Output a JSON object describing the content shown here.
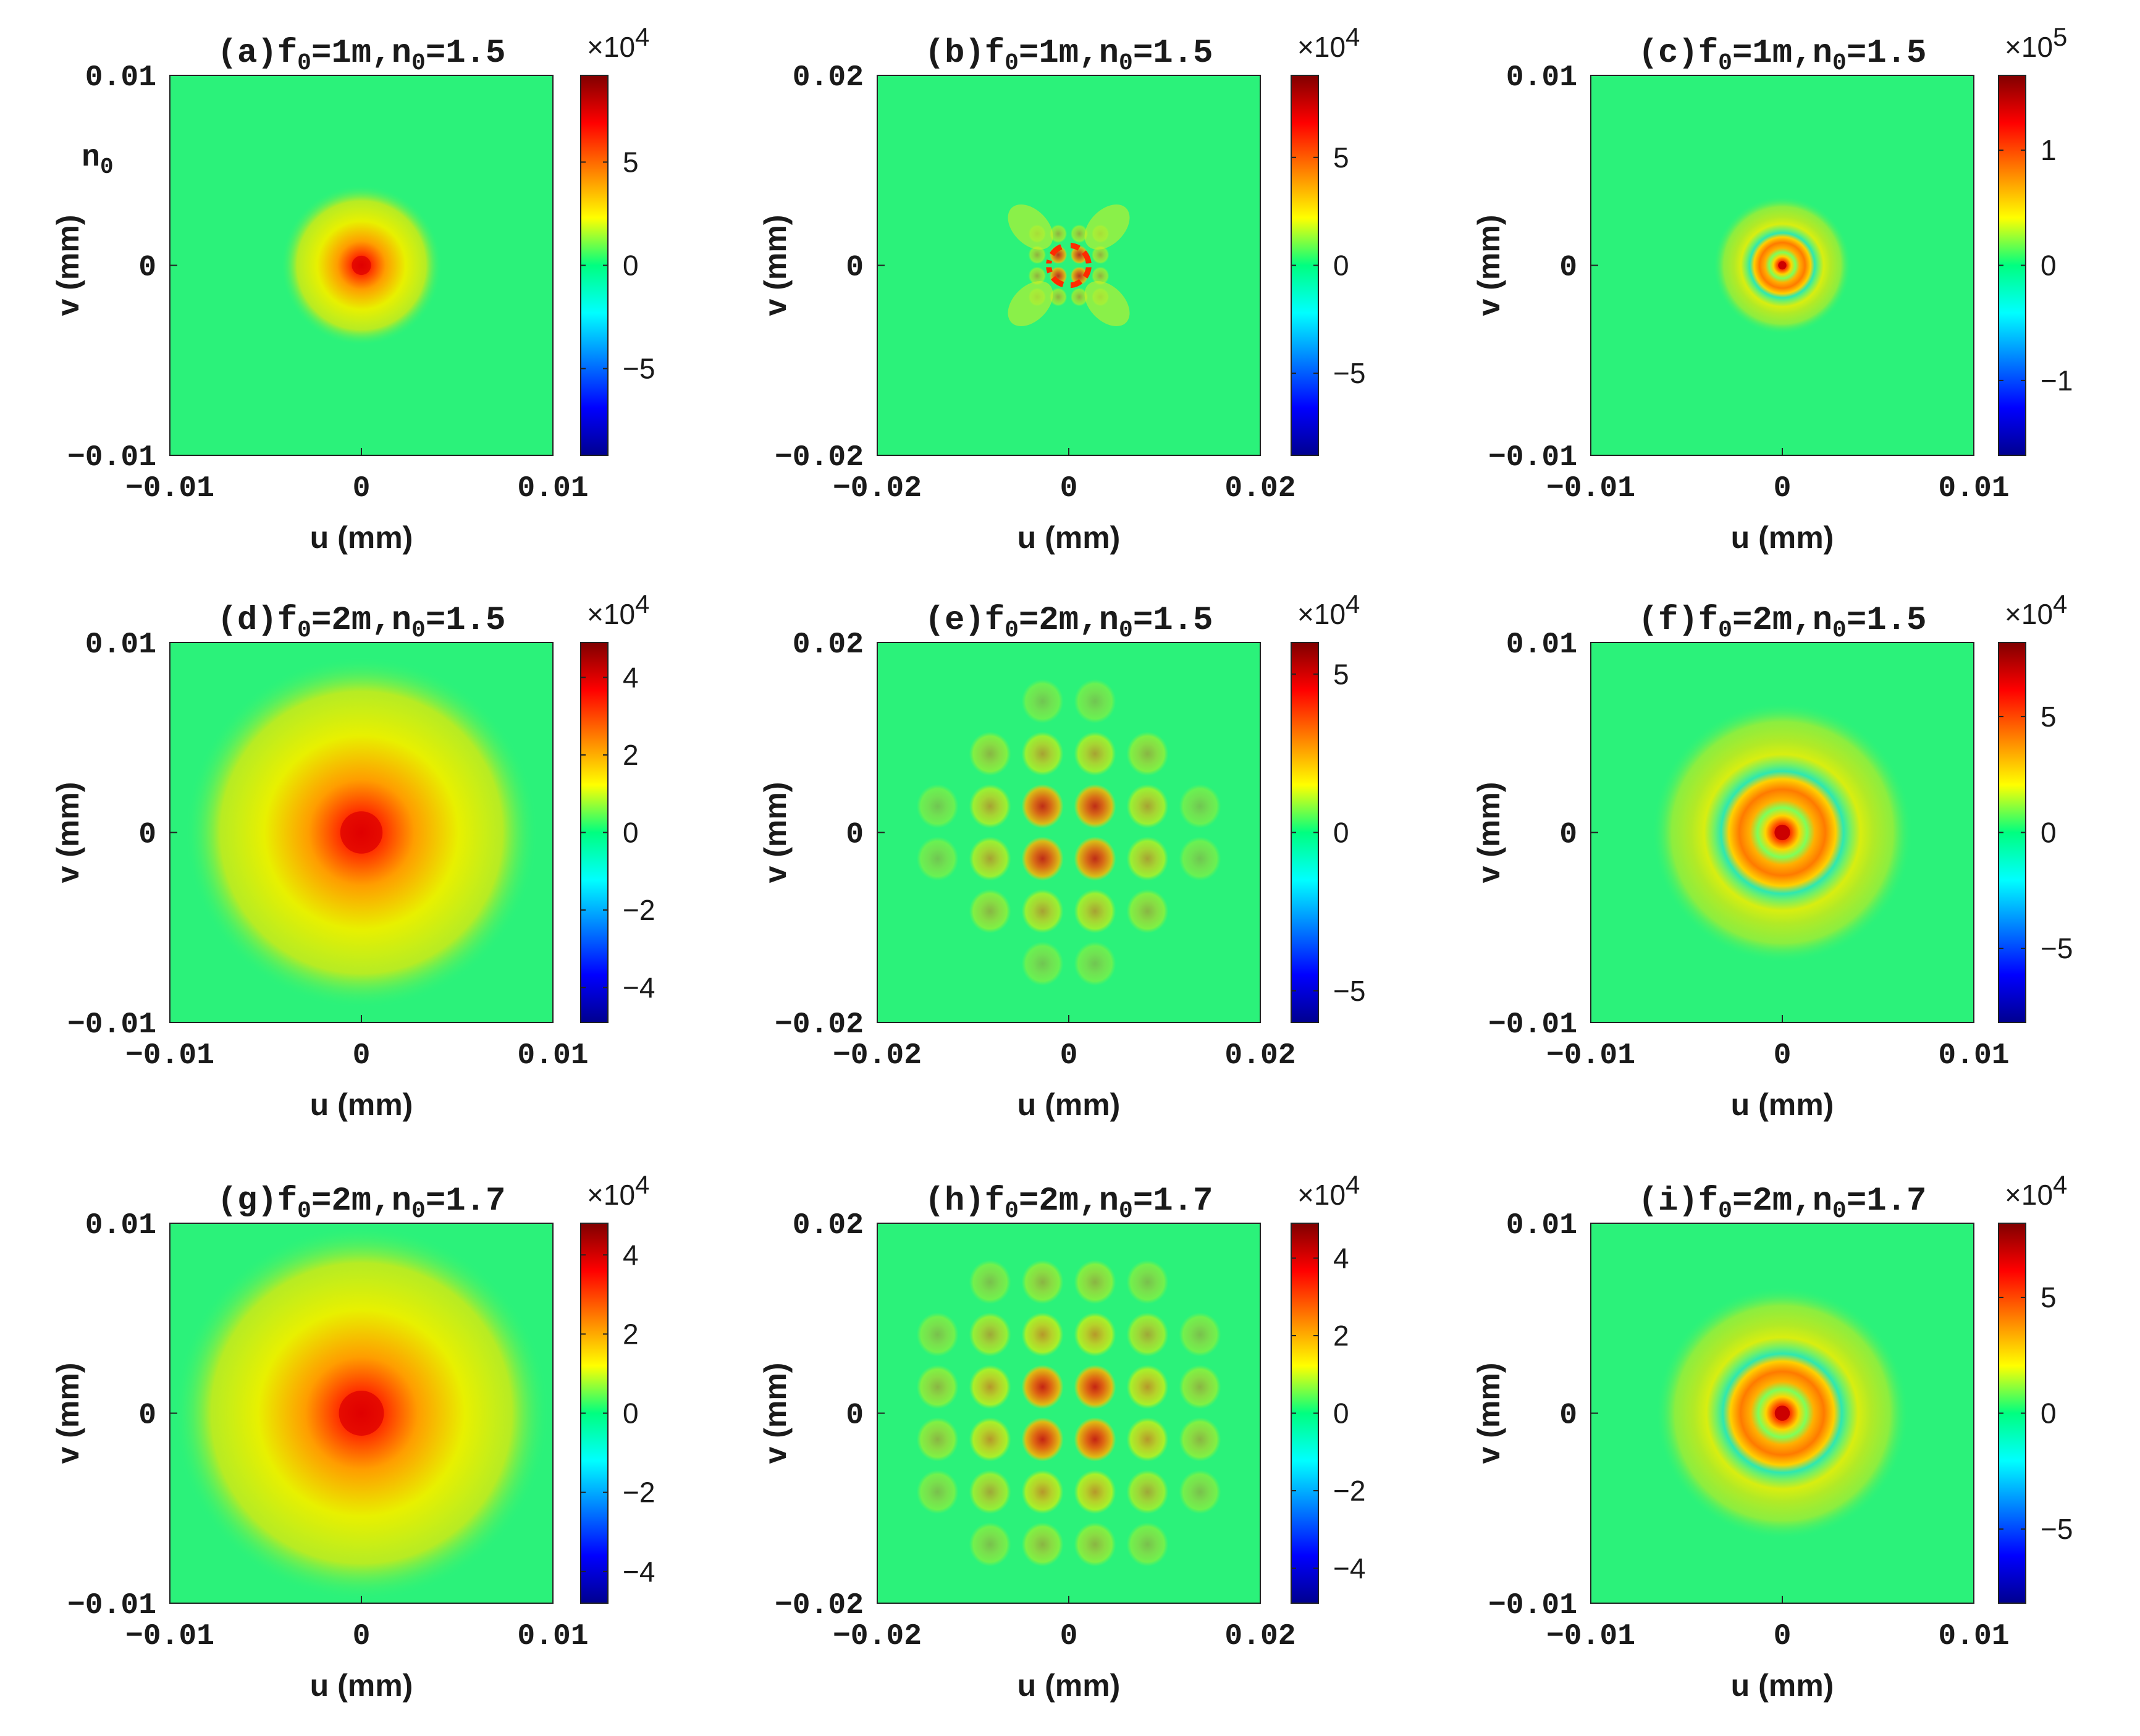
{
  "figure": {
    "stray_label": "n",
    "stray_label_sub": "0"
  },
  "chart_data": [
    {
      "id": "a",
      "type": "heatmap",
      "pattern": "radial-smooth",
      "title": {
        "prefix": "(a)",
        "f0": "1m",
        "n0": "1.5"
      },
      "xlabel": "u (mm)",
      "ylabel": "v (mm)",
      "xlim": [
        -0.01,
        0.01
      ],
      "ylim": [
        -0.01,
        0.01
      ],
      "xticks": [
        "-0.01",
        "0",
        "0.01"
      ],
      "yticks": [
        "-0.01",
        "0",
        "0.01"
      ],
      "colorbar": {
        "range": [
          -9.2,
          9.2
        ],
        "ticks": [
          "-5",
          "0",
          "5"
        ],
        "tick_values": [
          -5,
          0,
          5
        ],
        "multiplier": "×10",
        "exponent": "4"
      },
      "peak_value": 9.2,
      "feature_radius_fraction": 0.42
    },
    {
      "id": "b",
      "type": "heatmap",
      "pattern": "cross-lattice-tight",
      "title": {
        "prefix": "(b)",
        "f0": "1m",
        "n0": "1.5"
      },
      "xlabel": "u (mm)",
      "ylabel": "v (mm)",
      "xlim": [
        -0.02,
        0.02
      ],
      "ylim": [
        -0.02,
        0.02
      ],
      "xticks": [
        "-0.02",
        "0",
        "0.02"
      ],
      "yticks": [
        "-0.02",
        "0",
        "0.02"
      ],
      "colorbar": {
        "range": [
          -8.8,
          8.8
        ],
        "ticks": [
          "-5",
          "0",
          "5"
        ],
        "tick_values": [
          -5,
          0,
          5
        ],
        "multiplier": "×10",
        "exponent": "4"
      },
      "peak_value": 8.8,
      "feature_radius_fraction": 0.25
    },
    {
      "id": "c",
      "type": "heatmap",
      "pattern": "rings-small",
      "title": {
        "prefix": "(c)",
        "f0": "1m",
        "n0": "1.5"
      },
      "xlabel": "u (mm)",
      "ylabel": "v (mm)",
      "xlim": [
        -0.01,
        0.01
      ],
      "ylim": [
        -0.01,
        0.01
      ],
      "xticks": [
        "-0.01",
        "0",
        "0.01"
      ],
      "yticks": [
        "-0.01",
        "0",
        "0.01"
      ],
      "colorbar": {
        "range": [
          -1.65,
          1.65
        ],
        "ticks": [
          "-1",
          "0",
          "1"
        ],
        "tick_values": [
          -1,
          0,
          1
        ],
        "multiplier": "×10",
        "exponent": "5"
      },
      "peak_value": 1.65,
      "feature_radius_fraction": 0.36
    },
    {
      "id": "d",
      "type": "heatmap",
      "pattern": "radial-smooth",
      "title": {
        "prefix": "(d)",
        "f0": "2m",
        "n0": "1.5"
      },
      "xlabel": "u (mm)",
      "ylabel": "v (mm)",
      "xlim": [
        -0.01,
        0.01
      ],
      "ylim": [
        -0.01,
        0.01
      ],
      "xticks": [
        "-0.01",
        "0",
        "0.01"
      ],
      "yticks": [
        "-0.01",
        "0",
        "0.01"
      ],
      "colorbar": {
        "range": [
          -4.9,
          4.9
        ],
        "ticks": [
          "-4",
          "-2",
          "0",
          "2",
          "4"
        ],
        "tick_values": [
          -4,
          -2,
          0,
          2,
          4
        ],
        "multiplier": "×10",
        "exponent": "4"
      },
      "peak_value": 4.9,
      "feature_radius_fraction": 0.92
    },
    {
      "id": "e",
      "type": "heatmap",
      "pattern": "cross-lattice",
      "title": {
        "prefix": "(e)",
        "f0": "2m",
        "n0": "1.5"
      },
      "xlabel": "u (mm)",
      "ylabel": "v (mm)",
      "xlim": [
        -0.02,
        0.02
      ],
      "ylim": [
        -0.02,
        0.02
      ],
      "xticks": [
        "-0.02",
        "0",
        "0.02"
      ],
      "yticks": [
        "-0.02",
        "0",
        "0.02"
      ],
      "colorbar": {
        "range": [
          -6.0,
          6.0
        ],
        "ticks": [
          "-5",
          "0",
          "5"
        ],
        "tick_values": [
          -5,
          0,
          5
        ],
        "multiplier": "×10",
        "exponent": "4"
      },
      "peak_value": 6.0,
      "feature_radius_fraction": 0.78
    },
    {
      "id": "f",
      "type": "heatmap",
      "pattern": "rings-large",
      "title": {
        "prefix": "(f)",
        "f0": "2m",
        "n0": "1.5"
      },
      "xlabel": "u (mm)",
      "ylabel": "v (mm)",
      "xlim": [
        -0.01,
        0.01
      ],
      "ylim": [
        -0.01,
        0.01
      ],
      "xticks": [
        "-0.01",
        "0",
        "0.01"
      ],
      "yticks": [
        "-0.01",
        "0",
        "0.01"
      ],
      "colorbar": {
        "range": [
          -8.2,
          8.2
        ],
        "ticks": [
          "-5",
          "0",
          "5"
        ],
        "tick_values": [
          -5,
          0,
          5
        ],
        "multiplier": "×10",
        "exponent": "4"
      },
      "peak_value": 8.2,
      "feature_radius_fraction": 0.68
    },
    {
      "id": "g",
      "type": "heatmap",
      "pattern": "radial-smooth",
      "title": {
        "prefix": "(g)",
        "f0": "2m",
        "n0": "1.7"
      },
      "xlabel": "u (mm)",
      "ylabel": "v (mm)",
      "xlim": [
        -0.01,
        0.01
      ],
      "ylim": [
        -0.01,
        0.01
      ],
      "xticks": [
        "-0.01",
        "0",
        "0.01"
      ],
      "yticks": [
        "-0.01",
        "0",
        "0.01"
      ],
      "colorbar": {
        "range": [
          -4.8,
          4.8
        ],
        "ticks": [
          "-4",
          "-2",
          "0",
          "2",
          "4"
        ],
        "tick_values": [
          -4,
          -2,
          0,
          2,
          4
        ],
        "multiplier": "×10",
        "exponent": "4"
      },
      "peak_value": 4.8,
      "feature_radius_fraction": 0.98
    },
    {
      "id": "h",
      "type": "heatmap",
      "pattern": "cross-lattice",
      "title": {
        "prefix": "(h)",
        "f0": "2m",
        "n0": "1.7"
      },
      "xlabel": "u (mm)",
      "ylabel": "v (mm)",
      "xlim": [
        -0.02,
        0.02
      ],
      "ylim": [
        -0.02,
        0.02
      ],
      "xticks": [
        "-0.02",
        "0",
        "0.02"
      ],
      "yticks": [
        "-0.02",
        "0",
        "0.02"
      ],
      "colorbar": {
        "range": [
          -4.9,
          4.9
        ],
        "ticks": [
          "-4",
          "-2",
          "0",
          "2",
          "4"
        ],
        "tick_values": [
          -4,
          -2,
          0,
          2,
          4
        ],
        "multiplier": "×10",
        "exponent": "4"
      },
      "peak_value": 4.9,
      "feature_radius_fraction": 0.95
    },
    {
      "id": "i",
      "type": "heatmap",
      "pattern": "rings-large",
      "title": {
        "prefix": "(i)",
        "f0": "2m",
        "n0": "1.7"
      },
      "xlabel": "u (mm)",
      "ylabel": "v (mm)",
      "xlim": [
        -0.01,
        0.01
      ],
      "ylim": [
        -0.01,
        0.01
      ],
      "xticks": [
        "-0.01",
        "0",
        "0.01"
      ],
      "yticks": [
        "-0.01",
        "0",
        "0.01"
      ],
      "colorbar": {
        "range": [
          -8.2,
          8.2
        ],
        "ticks": [
          "-5",
          "0",
          "5"
        ],
        "tick_values": [
          -5,
          0,
          5
        ],
        "multiplier": "×10",
        "exponent": "4"
      },
      "peak_value": 8.2,
      "feature_radius_fraction": 0.66
    }
  ]
}
